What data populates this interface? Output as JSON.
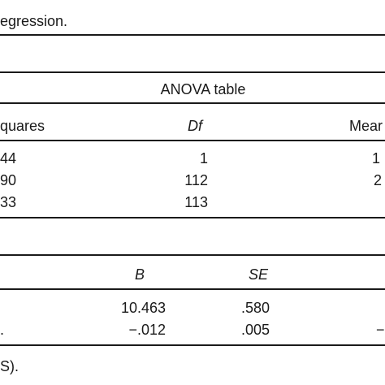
{
  "caption_top": "egression.",
  "anova": {
    "title": "ANOVA table",
    "headers": {
      "sum_squares": "quares",
      "df": "Df",
      "mean": "Mear"
    },
    "rows": [
      {
        "ss": "44",
        "df": "1",
        "mean": "1"
      },
      {
        "ss": "90",
        "df": "112",
        "mean": "2"
      },
      {
        "ss": "33",
        "df": "113",
        "mean": ""
      }
    ]
  },
  "coef": {
    "headers": {
      "b": "B",
      "se": "SE"
    },
    "rows": [
      {
        "label": "",
        "b": "10.463",
        "se": ".580",
        "extra": ""
      },
      {
        "label": ".",
        "b": "−.012",
        "se": ".005",
        "extra": "−"
      }
    ]
  },
  "footnote": "S)."
}
